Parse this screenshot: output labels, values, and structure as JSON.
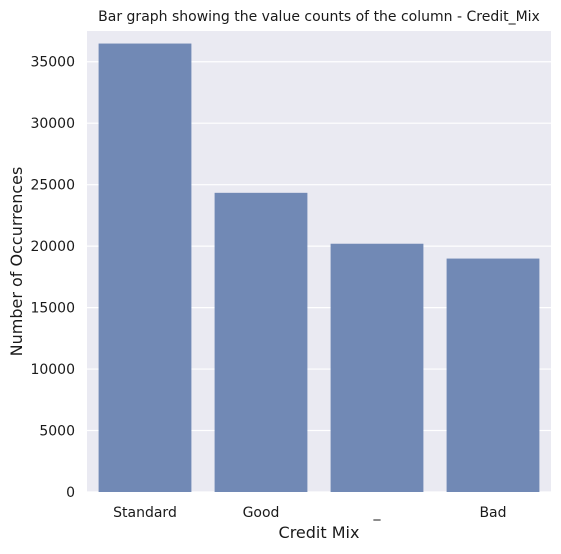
{
  "chart_data": {
    "type": "bar",
    "title": "Bar graph showing the value counts of the column - Credit_Mix",
    "xlabel": "Credit Mix",
    "ylabel": "Number of Occurrences",
    "categories": [
      "Standard",
      "Good",
      "_",
      "Bad"
    ],
    "values": [
      36479,
      24337,
      20195,
      18989
    ],
    "ylim": [
      0,
      37500
    ],
    "yticks": [
      0,
      5000,
      10000,
      15000,
      20000,
      25000,
      30000,
      35000
    ],
    "grid": true,
    "legend": "none",
    "colors": {
      "bar": "#7189b5",
      "background": "#eaeaf2",
      "grid": "#ffffff"
    }
  }
}
